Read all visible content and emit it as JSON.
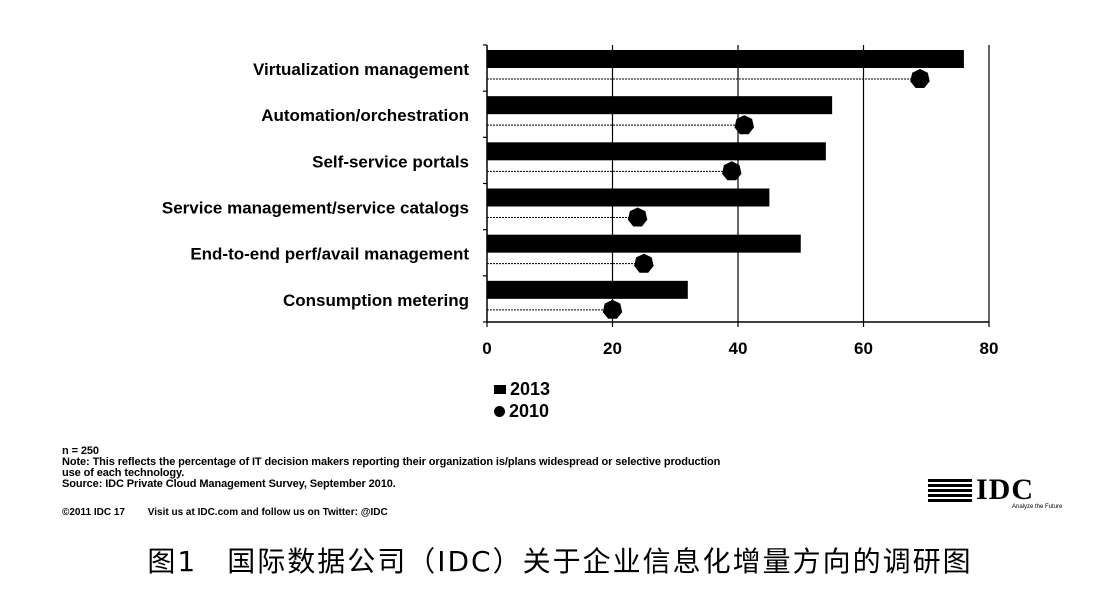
{
  "chart_data": {
    "type": "bar",
    "orientation": "horizontal",
    "categories": [
      "Virtualization management",
      "Automation/orchestration",
      "Self-service portals",
      "Service management/service catalogs",
      "End-to-end perf/avail management",
      "Consumption metering"
    ],
    "series": [
      {
        "name": "2013",
        "mark": "bar",
        "values": [
          76,
          55,
          54,
          45,
          50,
          32
        ]
      },
      {
        "name": "2010",
        "mark": "marker",
        "values": [
          69,
          41,
          39,
          24,
          25,
          20
        ]
      }
    ],
    "xlim": [
      0,
      80
    ],
    "xticks": [
      "0",
      "20",
      "40",
      "60",
      "80"
    ],
    "grid": "vertical",
    "legend_position": "bottom-left"
  },
  "legend": {
    "items": [
      "2013",
      "2010"
    ]
  },
  "notes": {
    "n": "n = 250",
    "note1": "Note: This reflects the percentage of IT decision makers reporting their organization is/plans widespread or selective production",
    "note2": "use of each technology.",
    "source": "Source: IDC Private Cloud Management Survey, September 2010."
  },
  "copyright": {
    "text": "©2011 IDC 17",
    "visit": "Visit us at IDC.com and follow us on Twitter: @IDC"
  },
  "logo": {
    "name": "IDC",
    "tagline": "Analyze the Future"
  },
  "caption": "图1　国际数据公司（IDC）关于企业信息化增量方向的调研图",
  "colors": {
    "bar": "#000000",
    "marker": "#000000",
    "grid": "#000000"
  }
}
